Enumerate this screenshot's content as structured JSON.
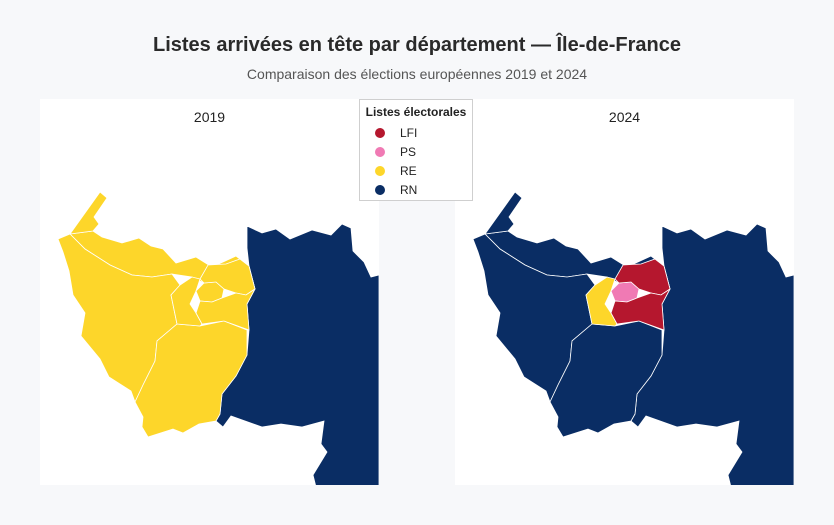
{
  "title": "Listes arrivées en tête par département — Île-de-France",
  "subtitle": "Comparaison des élections européennes 2019 et 2024",
  "legend": {
    "title": "Listes électorales",
    "items": [
      {
        "label": "LFI",
        "color": "#b5172e"
      },
      {
        "label": "PS",
        "color": "#f07ab4"
      },
      {
        "label": "RE",
        "color": "#fdd62a"
      },
      {
        "label": "RN",
        "color": "#0a2d64"
      }
    ]
  },
  "maps": [
    {
      "label": "2019",
      "regions": {
        "seine_et_marne": "RN",
        "yvelines": "RE",
        "essonne": "RE",
        "val_d_oise": "RE",
        "hauts_de_seine": "RE",
        "paris": "RE",
        "seine_saint_denis": "RE",
        "val_de_marne": "RE"
      }
    },
    {
      "label": "2024",
      "regions": {
        "seine_et_marne": "RN",
        "yvelines": "RN",
        "essonne": "RN",
        "val_d_oise": "RN",
        "hauts_de_seine": "RE",
        "paris": "PS",
        "seine_saint_denis": "LFI",
        "val_de_marne": "LFI"
      }
    }
  ]
}
